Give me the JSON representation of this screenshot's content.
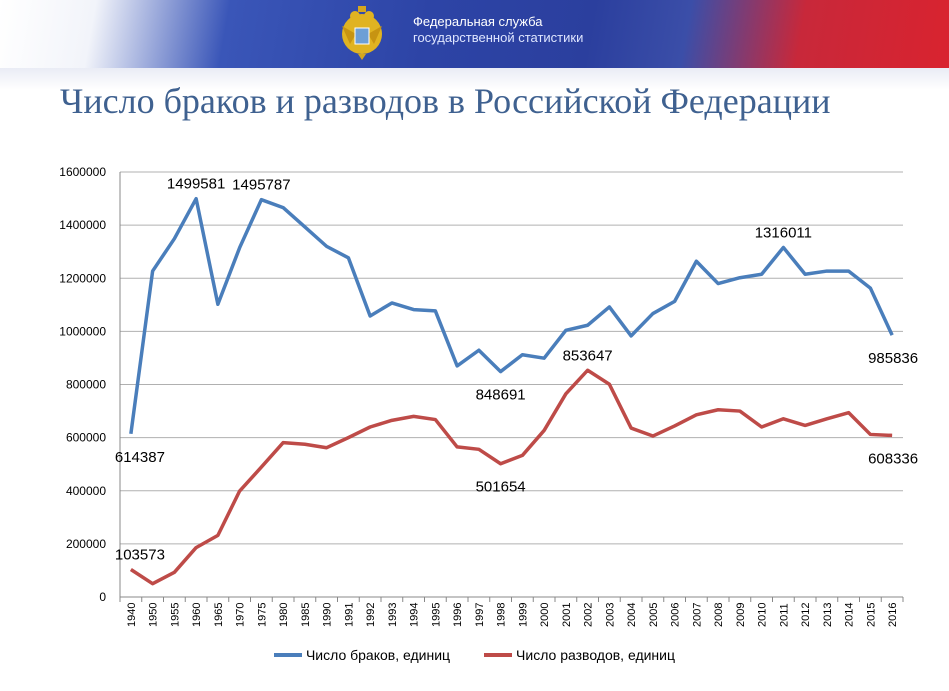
{
  "header": {
    "org_line1": "Федеральная служба",
    "org_line2": "государственной статистики",
    "emblem_icon": "double-headed-eagle-emblem"
  },
  "chart_data": {
    "type": "line",
    "title": "Число браков и разводов в Российской Федерации",
    "xlabel": "",
    "ylabel": "",
    "ylim": [
      0,
      1600000
    ],
    "yticks": [
      "0",
      "200000",
      "400000",
      "600000",
      "800000",
      "1000000",
      "1200000",
      "1400000",
      "1600000"
    ],
    "grid": true,
    "legend_placement": "bottom",
    "categories": [
      "1940",
      "1950",
      "1955",
      "1960",
      "1965",
      "1970",
      "1975",
      "1980",
      "1985",
      "1990",
      "1991",
      "1992",
      "1993",
      "1994",
      "1995",
      "1996",
      "1997",
      "1998",
      "1999",
      "2000",
      "2001",
      "2002",
      "2003",
      "2004",
      "2005",
      "2006",
      "2007",
      "2008",
      "2009",
      "2010",
      "2011",
      "2012",
      "2013",
      "2014",
      "2015",
      "2016"
    ],
    "series": [
      {
        "name": "Число браков, единиц",
        "color": "#4a7ebb",
        "values": [
          614387,
          1227000,
          1349000,
          1499581,
          1102000,
          1315000,
          1495787,
          1466000,
          1393000,
          1320000,
          1277000,
          1058000,
          1107000,
          1082000,
          1077000,
          870000,
          929000,
          848691,
          912000,
          899000,
          1004000,
          1023000,
          1092000,
          983000,
          1067000,
          1113000,
          1264000,
          1180000,
          1202000,
          1215000,
          1316011,
          1215000,
          1227000,
          1227000,
          1163000,
          985836
        ],
        "labels": [
          {
            "index": 0,
            "text": "614387",
            "pos": "below"
          },
          {
            "index": 3,
            "text": "1499581",
            "pos": "above"
          },
          {
            "index": 6,
            "text": "1495787",
            "pos": "above"
          },
          {
            "index": 17,
            "text": "848691",
            "pos": "below"
          },
          {
            "index": 30,
            "text": "1316011",
            "pos": "above"
          },
          {
            "index": 35,
            "text": "985836",
            "pos": "below"
          }
        ]
      },
      {
        "name": "Число разводов, единиц",
        "color": "#be4b48",
        "values": [
          103573,
          50000,
          93000,
          186000,
          232000,
          399000,
          489000,
          581000,
          575000,
          562000,
          600000,
          640000,
          665000,
          680000,
          668000,
          565000,
          556000,
          501654,
          533000,
          627000,
          765000,
          853647,
          801000,
          636000,
          606000,
          644000,
          686000,
          705000,
          700000,
          640000,
          671000,
          646000,
          671000,
          694000,
          612000,
          608336
        ],
        "labels": [
          {
            "index": 0,
            "text": "103573",
            "pos": "above"
          },
          {
            "index": 17,
            "text": "501654",
            "pos": "below"
          },
          {
            "index": 21,
            "text": "853647",
            "pos": "above"
          },
          {
            "index": 35,
            "text": "608336",
            "pos": "below"
          }
        ]
      }
    ]
  }
}
